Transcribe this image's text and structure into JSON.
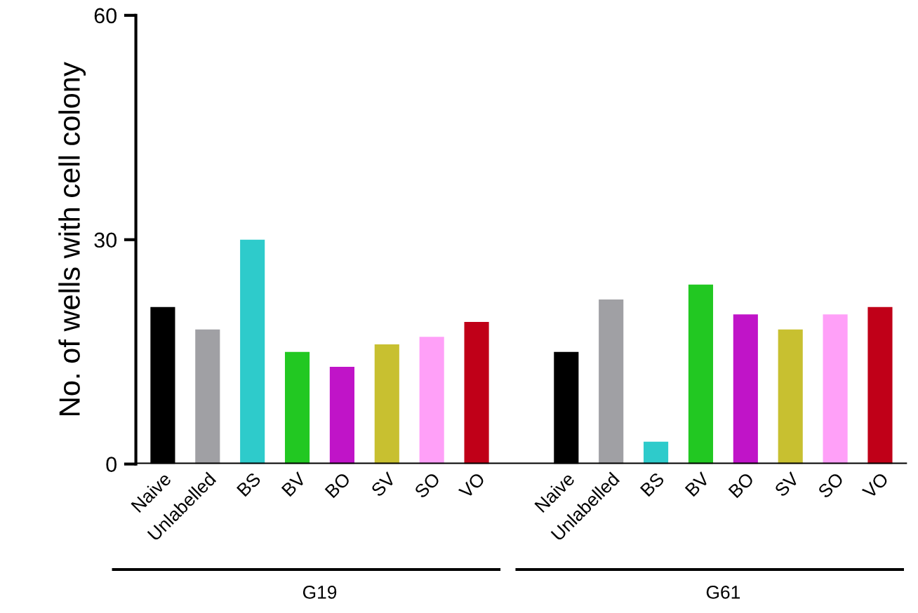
{
  "chart_data": {
    "type": "bar",
    "ylabel": "No. of wells with cell colony",
    "categories": [
      "Naive",
      "Unlabelled",
      "BS",
      "BV",
      "BO",
      "SV",
      "SO",
      "VO",
      null,
      "Naive",
      "Unlabelled",
      "BS",
      "BV",
      "BO",
      "SV",
      "SO",
      "VO"
    ],
    "values": [
      21,
      18,
      30,
      15,
      13,
      16,
      17,
      19,
      null,
      15,
      22,
      3,
      24,
      20,
      18,
      20,
      21
    ],
    "colors": [
      "#000000",
      "#a0a0a4",
      "#2ecbcb",
      "#22c822",
      "#c014c8",
      "#c8c030",
      "#ffa0f8",
      "#c00018",
      null,
      "#000000",
      "#a0a0a4",
      "#2ecbcb",
      "#22c822",
      "#c014c8",
      "#c8c030",
      "#ffa0f8",
      "#c00018"
    ],
    "ylim": [
      0,
      60
    ],
    "yticks": [
      0,
      30,
      60
    ],
    "grid": false,
    "annotations": [
      "G19",
      "G61"
    ]
  }
}
